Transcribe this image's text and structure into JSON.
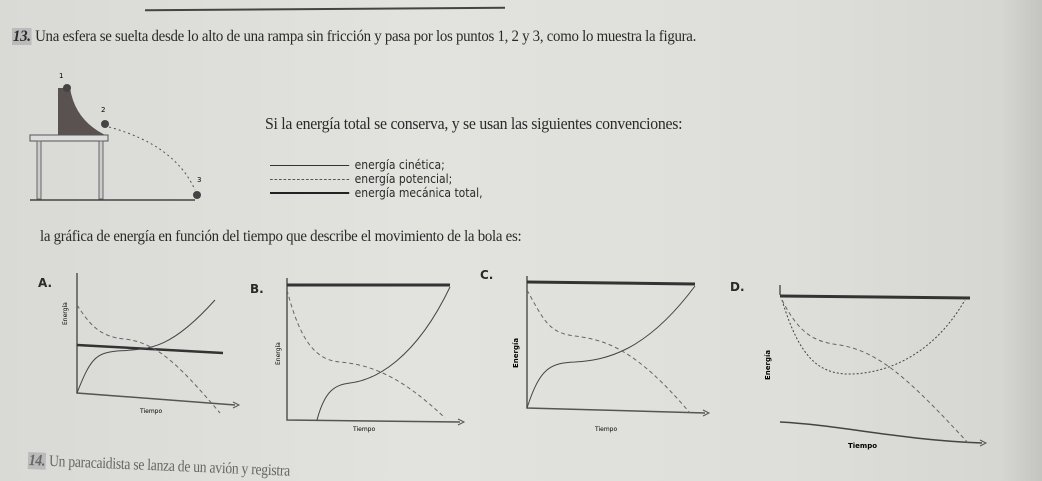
{
  "question13": {
    "number": "13.",
    "text": "Una esfera se suelta desde lo alto de una rampa sin fricción y pasa por los puntos 1, 2 y 3, como lo muestra la figura.",
    "figure_points": [
      "1",
      "2",
      "3"
    ],
    "conditions": "Si la energía total se conserva, y se usan las siguientes convenciones:",
    "legend": [
      {
        "style": "thin-solid",
        "label": "energía cinética;"
      },
      {
        "style": "dashed",
        "label": "energía potencial;"
      },
      {
        "style": "thick-solid",
        "label": "energía mecánica total,"
      }
    ],
    "prompt": "la gráfica de energía en función del tiempo que describe el movimiento de la bola es:",
    "options": [
      {
        "letter": "A.",
        "ylabel": "Energía",
        "xlabel": "Tiempo"
      },
      {
        "letter": "B.",
        "ylabel": "Energía",
        "xlabel": "Tiempo"
      },
      {
        "letter": "C.",
        "ylabel": "Energía",
        "xlabel": "Tiempo"
      },
      {
        "letter": "D.",
        "ylabel": "Energía",
        "xlabel": "Tiempo"
      }
    ]
  },
  "question14": {
    "number": "14.",
    "text": "Un paracaidista se lanza de un avión y registra"
  }
}
